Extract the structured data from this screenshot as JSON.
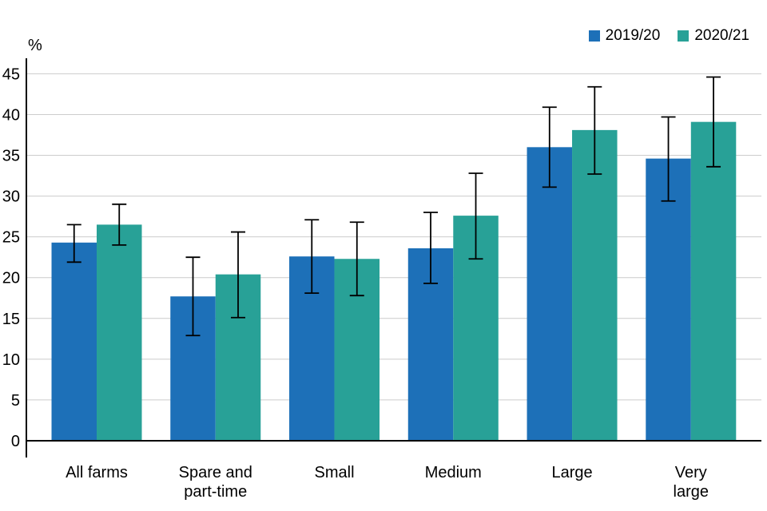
{
  "legend": {
    "items": [
      {
        "label": "2019/20",
        "color": "#1d70b8"
      },
      {
        "label": "2020/21",
        "color": "#28a197"
      }
    ]
  },
  "y_axis": {
    "unit_label": "%",
    "ticks": [
      0,
      5,
      10,
      15,
      20,
      25,
      30,
      35,
      40,
      45
    ]
  },
  "chart_data": {
    "type": "bar",
    "title": "",
    "xlabel": "",
    "ylabel": "%",
    "ylim": [
      0,
      45
    ],
    "ytick_step": 5,
    "grid": true,
    "error_bars": true,
    "legend_position": "top-right",
    "categories": [
      "All farms",
      "Spare and part-time",
      "Small",
      "Medium",
      "Large",
      "Very large"
    ],
    "category_lines": [
      [
        "All farms"
      ],
      [
        "Spare and",
        "part-time"
      ],
      [
        "Small"
      ],
      [
        "Medium"
      ],
      [
        "Large"
      ],
      [
        "Very",
        "large"
      ]
    ],
    "series": [
      {
        "name": "2019/20",
        "color": "#1d70b8",
        "values": [
          24.3,
          17.7,
          22.6,
          23.6,
          36.0,
          34.6
        ],
        "error_low": [
          21.9,
          12.9,
          18.1,
          19.3,
          31.1,
          29.4
        ],
        "error_high": [
          26.5,
          22.5,
          27.1,
          28.0,
          40.9,
          39.7
        ]
      },
      {
        "name": "2020/21",
        "color": "#28a197",
        "values": [
          26.5,
          20.4,
          22.3,
          27.6,
          38.1,
          39.1
        ],
        "error_low": [
          24.0,
          15.1,
          17.8,
          22.3,
          32.7,
          33.6
        ],
        "error_high": [
          29.0,
          25.6,
          26.8,
          32.8,
          43.4,
          44.6
        ]
      }
    ]
  }
}
